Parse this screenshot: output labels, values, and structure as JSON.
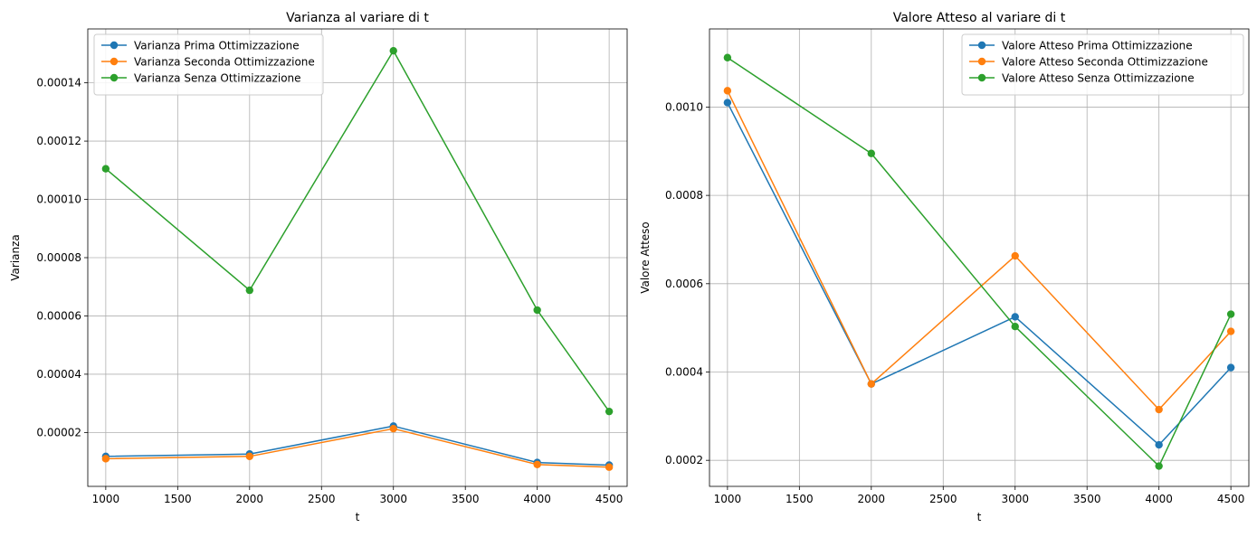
{
  "chart_data": [
    {
      "type": "line",
      "title": "Varianza al variare di t",
      "xlabel": "t",
      "ylabel": "Varianza",
      "x": [
        1000,
        2000,
        3000,
        4000,
        4500
      ],
      "xlim": [
        875,
        4625
      ],
      "ylim": [
        1.5e-06,
        0.0001585
      ],
      "xticks": [
        1000,
        1500,
        2000,
        2500,
        3000,
        3500,
        4000,
        4500
      ],
      "yticks": [
        2e-05,
        4e-05,
        6e-05,
        8e-05,
        0.0001,
        0.00012,
        0.00014
      ],
      "ytick_labels": [
        "0.00002",
        "0.00004",
        "0.00006",
        "0.00008",
        "0.00010",
        "0.00012",
        "0.00014"
      ],
      "grid": true,
      "legend_position": "top-left",
      "series": [
        {
          "name": "Varianza Prima Ottimizzazione",
          "color": "#1f77b4",
          "values": [
            1.18e-05,
            1.26e-05,
            2.22e-05,
            9.7e-06,
            8.8e-06
          ]
        },
        {
          "name": "Varianza Seconda Ottimizzazione",
          "color": "#ff7f0e",
          "values": [
            1.1e-05,
            1.18e-05,
            2.13e-05,
            9e-06,
            8.1e-06
          ]
        },
        {
          "name": "Varianza Senza Ottimizzazione",
          "color": "#2ca02c",
          "values": [
            0.0001105,
            6.88e-05,
            0.000151,
            6.2e-05,
            2.72e-05
          ]
        }
      ]
    },
    {
      "type": "line",
      "title": "Valore Atteso al variare di t",
      "xlabel": "t",
      "ylabel": "Valore Atteso",
      "x": [
        1000,
        2000,
        3000,
        4000,
        4500
      ],
      "xlim": [
        875,
        4625
      ],
      "ylim": [
        0.000141,
        0.001177
      ],
      "xticks": [
        1000,
        1500,
        2000,
        2500,
        3000,
        3500,
        4000,
        4500
      ],
      "yticks": [
        0.0002,
        0.0004,
        0.0006,
        0.0008,
        0.001
      ],
      "ytick_labels": [
        "0.0002",
        "0.0004",
        "0.0006",
        "0.0008",
        "0.0010"
      ],
      "grid": true,
      "legend_position": "top-right",
      "series": [
        {
          "name": "Valore Atteso Prima Ottimizzazione",
          "color": "#1f77b4",
          "values": [
            0.00101,
            0.000373,
            0.000525,
            0.000235,
            0.00041
          ]
        },
        {
          "name": "Valore Atteso Seconda Ottimizzazione",
          "color": "#ff7f0e",
          "values": [
            0.001037,
            0.000373,
            0.000663,
            0.000315,
            0.000492
          ]
        },
        {
          "name": "Valore Atteso Senza Ottimizzazione",
          "color": "#2ca02c",
          "values": [
            0.001112,
            0.000895,
            0.000503,
            0.000187,
            0.000531
          ]
        }
      ]
    }
  ]
}
